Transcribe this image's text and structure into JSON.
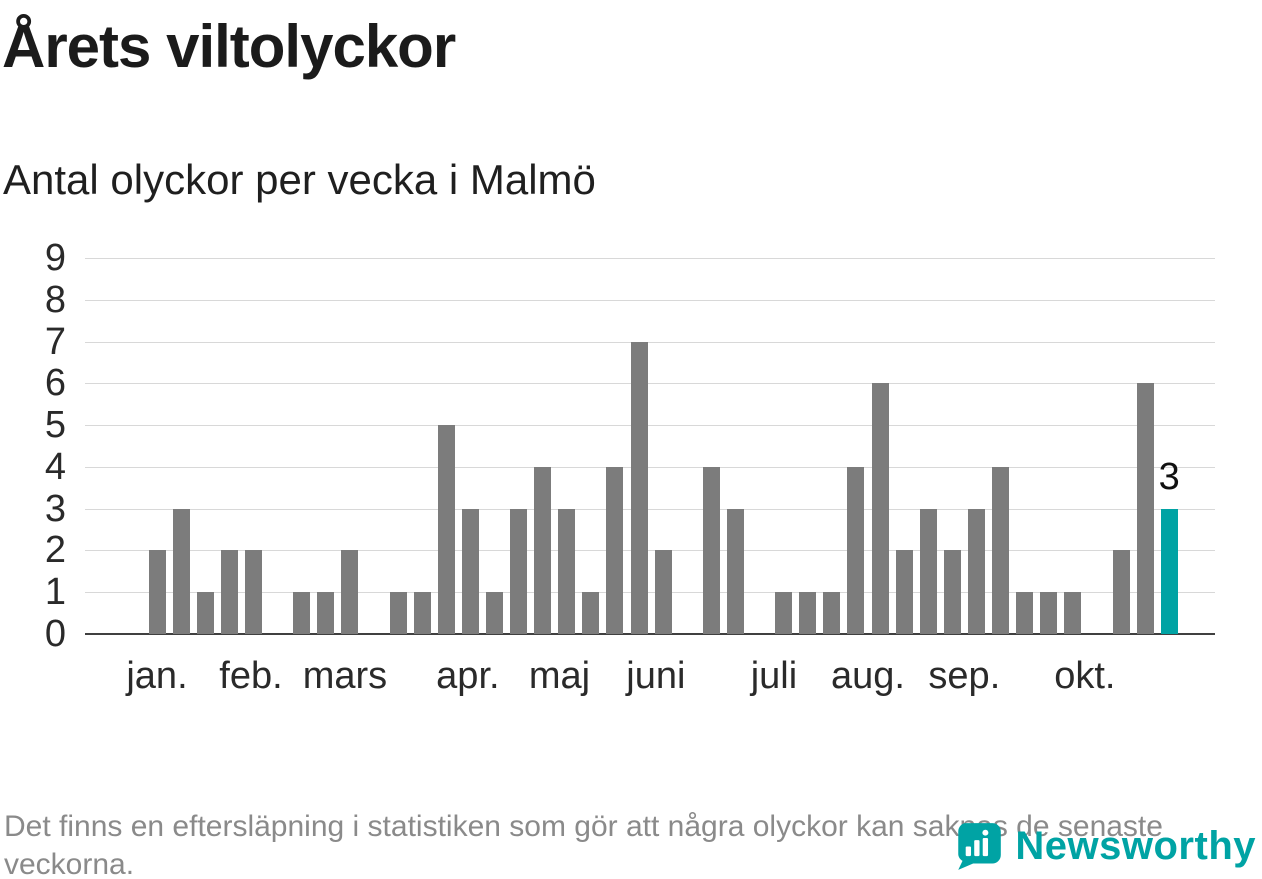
{
  "title": "Årets viltolyckor",
  "subtitle": "Antal olyckor per vecka i Malmö",
  "footer": {
    "note": "Det finns en eftersläpning i statistiken som gör att några olyckor kan saknas de senaste veckorna.",
    "brand": "Newsworthy"
  },
  "colors": {
    "accent": "#00a3a4",
    "bar": "#7c7c7c",
    "grid": "#d8d8d8",
    "axis": "#404040",
    "text": "#1b1b1b",
    "muted": "#8a8a8a"
  },
  "chart_data": {
    "type": "bar",
    "title": "Årets viltolyckor",
    "subtitle": "Antal olyckor per vecka i Malmö",
    "xlabel": "",
    "ylabel": "",
    "ylim": [
      0,
      9
    ],
    "yticks": [
      0,
      1,
      2,
      3,
      4,
      5,
      6,
      7,
      8,
      9
    ],
    "grid": true,
    "unit": "olyckor per vecka",
    "values": [
      2,
      3,
      1,
      2,
      2,
      0,
      1,
      1,
      2,
      0,
      1,
      1,
      5,
      3,
      1,
      3,
      4,
      3,
      1,
      4,
      7,
      2,
      0,
      4,
      3,
      0,
      1,
      1,
      1,
      4,
      6,
      2,
      3,
      2,
      3,
      4,
      1,
      1,
      1,
      0,
      2,
      6,
      3
    ],
    "highlight_index": 42,
    "highlight_label": "3",
    "months": [
      {
        "label": "jan.",
        "week": 0
      },
      {
        "label": "feb.",
        "week": 3.9
      },
      {
        "label": "mars",
        "week": 7.8
      },
      {
        "label": "apr.",
        "week": 12.9
      },
      {
        "label": "maj",
        "week": 16.7
      },
      {
        "label": "juni",
        "week": 20.7
      },
      {
        "label": "juli",
        "week": 25.6
      },
      {
        "label": "aug.",
        "week": 29.5
      },
      {
        "label": "sep.",
        "week": 33.5
      },
      {
        "label": "okt.",
        "week": 38.5
      }
    ]
  }
}
